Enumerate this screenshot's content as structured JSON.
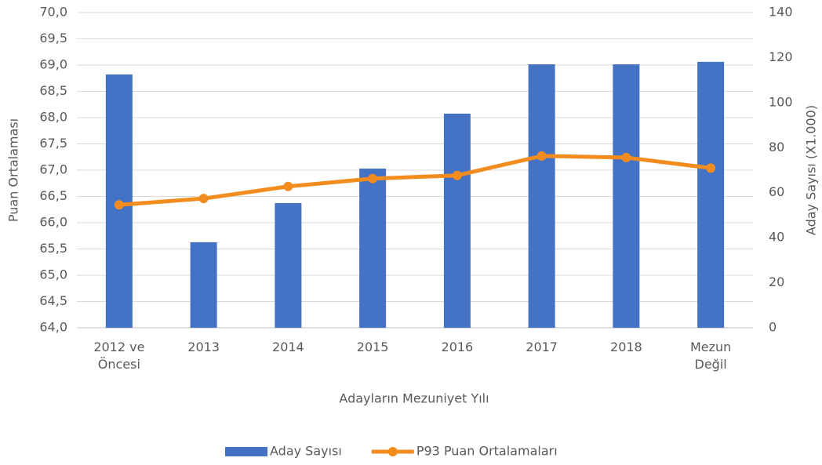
{
  "chart_data": {
    "type": "bar-line",
    "x_label": "Adayların Mezuniyet Yılı",
    "y_label": "Puan Ortalaması",
    "y2_label": "Aday Sayısı (X1.000)",
    "categories": [
      "2012 ve\nÖncesi",
      "2013",
      "2014",
      "2015",
      "2016",
      "2017",
      "2018",
      "Mezun\nDeğil"
    ],
    "series": [
      {
        "name": "Aday Sayısı",
        "type": "bar",
        "axis": "y2",
        "color": "#4472c4",
        "values": [
          112.5,
          38.0,
          55.4,
          70.7,
          95.1,
          117.0,
          117.0,
          118.1
        ]
      },
      {
        "name": "P93 Puan Ortalamaları",
        "type": "line",
        "color": "#f28c1e",
        "values": [
          66.34,
          66.46,
          66.69,
          66.84,
          66.9,
          67.27,
          67.24,
          67.04
        ]
      }
    ],
    "ylim": [
      64,
      70
    ],
    "yticks": [
      {
        "value": 64,
        "label": "64,0"
      },
      {
        "value": 64.5,
        "label": "64,5"
      },
      {
        "value": 65,
        "label": "65,0"
      },
      {
        "value": 65.5,
        "label": "65,5"
      },
      {
        "value": 66,
        "label": "66,0"
      },
      {
        "value": 66.5,
        "label": "66,5"
      },
      {
        "value": 67,
        "label": "67,0"
      },
      {
        "value": 67.5,
        "label": "67,5"
      },
      {
        "value": 68,
        "label": "68,0"
      },
      {
        "value": 68.5,
        "label": "68,5"
      },
      {
        "value": 69,
        "label": "69,0"
      },
      {
        "value": 69.5,
        "label": "69,5"
      },
      {
        "value": 70,
        "label": "70,0"
      }
    ],
    "y2lim": [
      0,
      140
    ],
    "y2ticks": [
      0,
      20,
      40,
      60,
      80,
      100,
      120,
      140
    ],
    "grid": true,
    "legend": "bottom"
  }
}
